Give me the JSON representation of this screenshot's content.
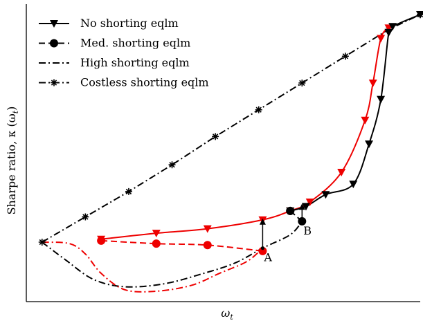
{
  "chart_data": {
    "type": "line",
    "xlabel": "ω",
    "xlabel_sub": "t",
    "ylabel": "Sharpe ratio, κ (ω",
    "ylabel_sub": "t",
    "ylabel_close": ")",
    "legend_position": "top-left",
    "grid": false,
    "legend": [
      {
        "name": "No shorting eqlm",
        "style": "solid",
        "marker": "triangle-down"
      },
      {
        "name": "Med. shorting eqlm",
        "style": "dashed",
        "marker": "circle"
      },
      {
        "name": "High shorting eqlm",
        "style": "dashdot",
        "marker": "none"
      },
      {
        "name": "Costless shorting eqlm",
        "style": "dashdot",
        "marker": "star"
      }
    ],
    "xlim": [
      0,
      100
    ],
    "ylim": [
      0,
      100
    ],
    "colors": {
      "black": "#000000",
      "red": "#ee0000"
    },
    "series": [
      {
        "id": "costless",
        "color": "#000000",
        "style": "dashdot",
        "marker": "star",
        "x": [
          4,
          15,
          26,
          37,
          48,
          59,
          70,
          81,
          92,
          100
        ],
        "y": [
          20,
          28.5,
          37,
          46,
          55.5,
          64.5,
          73.5,
          82.5,
          91.5,
          96.5
        ]
      },
      {
        "id": "black-high",
        "color": "#000000",
        "style": "dashdot",
        "marker": "none",
        "x": [
          4,
          10,
          17,
          25,
          35,
          45,
          53,
          60,
          67,
          70
        ],
        "y": [
          20,
          14,
          7.5,
          5,
          6,
          9.5,
          13,
          18,
          22.5,
          27
        ]
      },
      {
        "id": "red-high",
        "color": "#ee0000",
        "style": "dashdot",
        "marker": "none",
        "x": [
          4,
          11,
          15,
          19,
          25,
          33,
          42,
          49,
          56,
          60
        ],
        "y": [
          20,
          19.5,
          16,
          9.5,
          4,
          3.5,
          5.5,
          9.5,
          13.5,
          18
        ]
      },
      {
        "id": "red-med",
        "color": "#ee0000",
        "style": "dashed",
        "marker": "circle",
        "x": [
          19,
          33,
          46,
          60
        ],
        "y": [
          20.5,
          19.5,
          19,
          17
        ]
      },
      {
        "id": "red-none",
        "color": "#ee0000",
        "style": "solid",
        "marker": "triangle-down",
        "x": [
          19,
          33,
          46,
          60,
          67,
          72,
          80,
          86,
          88,
          90,
          92
        ],
        "y": [
          21,
          23,
          24.5,
          27.5,
          30.5,
          33.5,
          43.5,
          61,
          73.5,
          88.5,
          92
        ]
      },
      {
        "id": "black-none",
        "color": "#000000",
        "style": "solid",
        "marker": "triangle-down",
        "x": [
          67,
          71,
          76,
          83,
          87,
          90,
          92,
          93,
          100
        ],
        "y": [
          30.5,
          32,
          36,
          39.5,
          53,
          68,
          90.5,
          92.5,
          96.5
        ]
      },
      {
        "id": "black-med-dash",
        "color": "#000000",
        "style": "dashed",
        "marker": "circle",
        "x": [
          67,
          70
        ],
        "y": [
          30.5,
          27
        ]
      }
    ],
    "special_markers": [
      {
        "x": 92,
        "y": 90.5,
        "color": "#000000",
        "marker": "triangle-down"
      },
      {
        "x": 67,
        "y": 30.5,
        "color": "#000000",
        "marker": "circle"
      }
    ],
    "annotations": [
      {
        "text": "A",
        "x": 60,
        "y": 18,
        "arrow_to_y": 28
      },
      {
        "text": "B",
        "x": 70,
        "y": 27,
        "arrow_to_y": 33
      }
    ]
  }
}
